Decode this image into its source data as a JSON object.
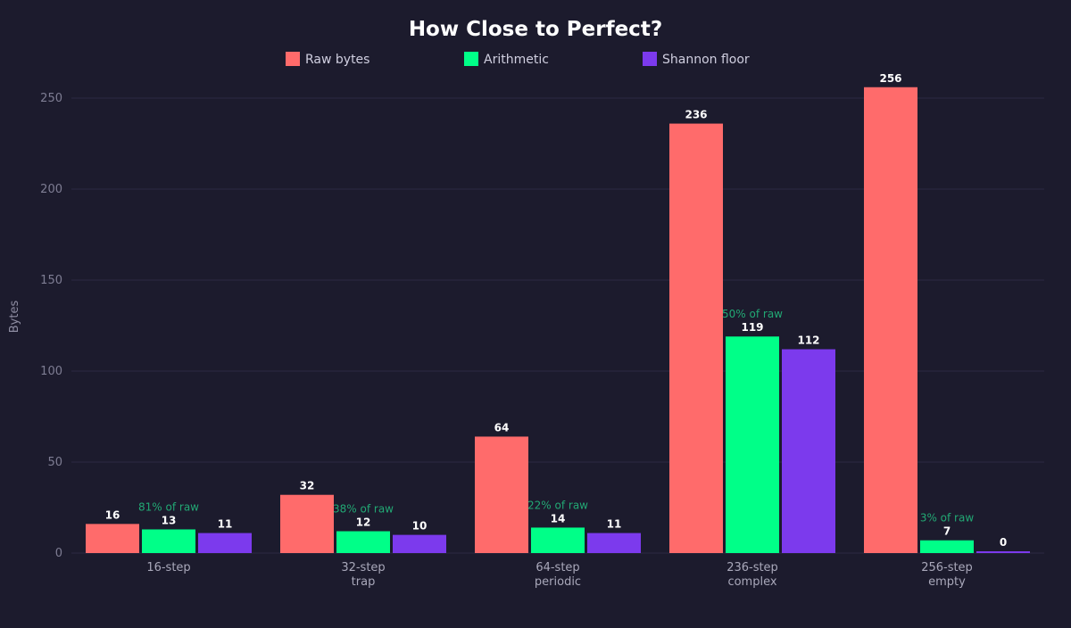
{
  "chart_data": {
    "type": "bar",
    "title": "How Close to Perfect?",
    "ylabel": "Bytes",
    "xlabel": "",
    "ylim": [
      0,
      250
    ],
    "yticks": [
      0,
      50,
      100,
      150,
      200,
      250
    ],
    "grid": true,
    "legend_placement": "top-center",
    "categories": [
      [
        "16-step"
      ],
      [
        "32-step",
        "trap"
      ],
      [
        "64-step",
        "periodic"
      ],
      [
        "236-step",
        "complex"
      ],
      [
        "256-step",
        "empty"
      ]
    ],
    "series": [
      {
        "name": "Raw bytes",
        "color": "#ff6b6b",
        "values": [
          16,
          32,
          64,
          236,
          256
        ]
      },
      {
        "name": "Arithmetic",
        "color": "#00ff88",
        "values": [
          13,
          12,
          14,
          119,
          7
        ]
      },
      {
        "name": "Shannon floor",
        "color": "#7c3aed",
        "values": [
          11,
          10,
          11,
          112,
          0
        ]
      }
    ],
    "annotations": [
      "81% of raw",
      "38% of raw",
      "22% of raw",
      "50% of raw",
      "3% of raw"
    ],
    "annotation_color": "#22a874"
  }
}
